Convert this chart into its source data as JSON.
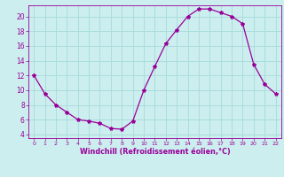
{
  "x": [
    0,
    1,
    2,
    3,
    4,
    5,
    6,
    7,
    8,
    9,
    10,
    11,
    12,
    13,
    14,
    15,
    16,
    17,
    18,
    19,
    20,
    21,
    22
  ],
  "y": [
    12.0,
    9.5,
    8.0,
    7.0,
    6.0,
    5.8,
    5.5,
    4.8,
    4.7,
    5.8,
    10.0,
    13.2,
    16.3,
    18.2,
    20.0,
    21.0,
    21.0,
    20.5,
    20.0,
    19.0,
    13.5,
    10.8,
    9.5
  ],
  "line_color": "#990099",
  "marker": "*",
  "marker_size": 3,
  "bg_color": "#cceeee",
  "grid_color": "#aadddd",
  "xlabel": "Windchill (Refroidissement éolien,°C)",
  "xlabel_color": "#990099",
  "tick_color": "#990099",
  "xlim": [
    -0.5,
    22.5
  ],
  "ylim": [
    3.5,
    21.5
  ],
  "yticks": [
    4,
    6,
    8,
    10,
    12,
    14,
    16,
    18,
    20
  ],
  "xticks": [
    0,
    1,
    2,
    3,
    4,
    5,
    6,
    7,
    8,
    9,
    10,
    11,
    12,
    13,
    14,
    15,
    16,
    17,
    18,
    19,
    20,
    21,
    22
  ]
}
